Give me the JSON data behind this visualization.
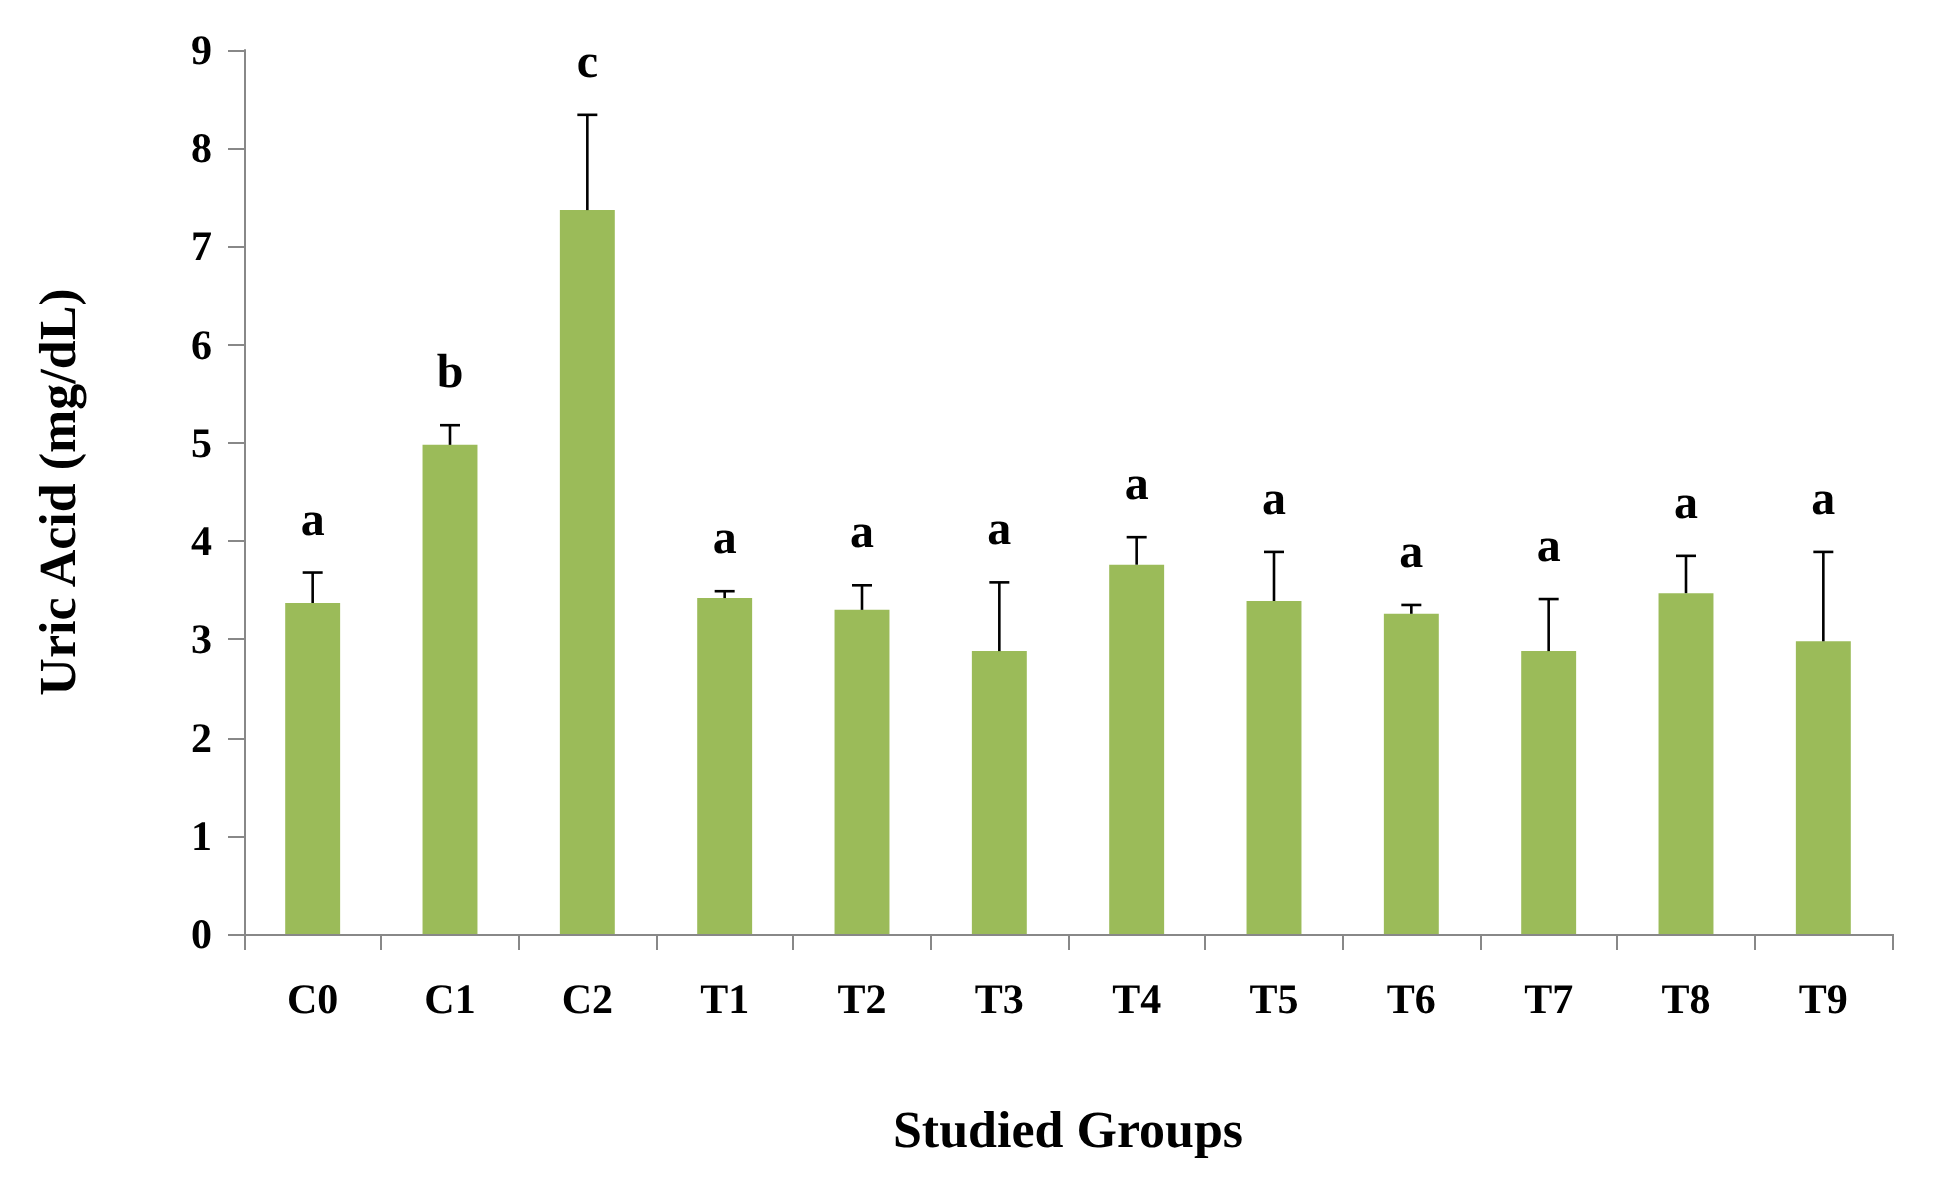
{
  "chart_data": {
    "type": "bar",
    "xlabel": "Studied Groups",
    "ylabel": "Uric Acid (mg/dL)",
    "categories": [
      "C0",
      "C1",
      "C2",
      "T1",
      "T2",
      "T3",
      "T4",
      "T5",
      "T6",
      "T7",
      "T8",
      "T9"
    ],
    "values": [
      3.37,
      4.98,
      7.37,
      3.42,
      3.3,
      2.88,
      3.76,
      3.39,
      3.26,
      2.88,
      3.47,
      2.98
    ],
    "errors": [
      [
        3.37,
        3.68
      ],
      [
        4.98,
        5.18
      ],
      [
        7.37,
        8.34
      ],
      [
        3.42,
        3.49
      ],
      [
        3.3,
        3.55
      ],
      [
        2.88,
        3.58
      ],
      [
        3.76,
        4.04
      ],
      [
        3.39,
        3.89
      ],
      [
        3.26,
        3.35
      ],
      [
        2.88,
        3.41
      ],
      [
        3.47,
        3.85
      ],
      [
        2.98,
        3.89
      ]
    ],
    "color": "#9bbb59",
    "ylim": [
      0,
      9
    ],
    "yticks": [
      0,
      1,
      2,
      3,
      4,
      5,
      6,
      7,
      8,
      9
    ],
    "grid": false,
    "annotations": [
      "a",
      "b",
      "c",
      "a",
      "a",
      "a",
      "a",
      "a",
      "a",
      "a",
      "a",
      "a"
    ]
  }
}
